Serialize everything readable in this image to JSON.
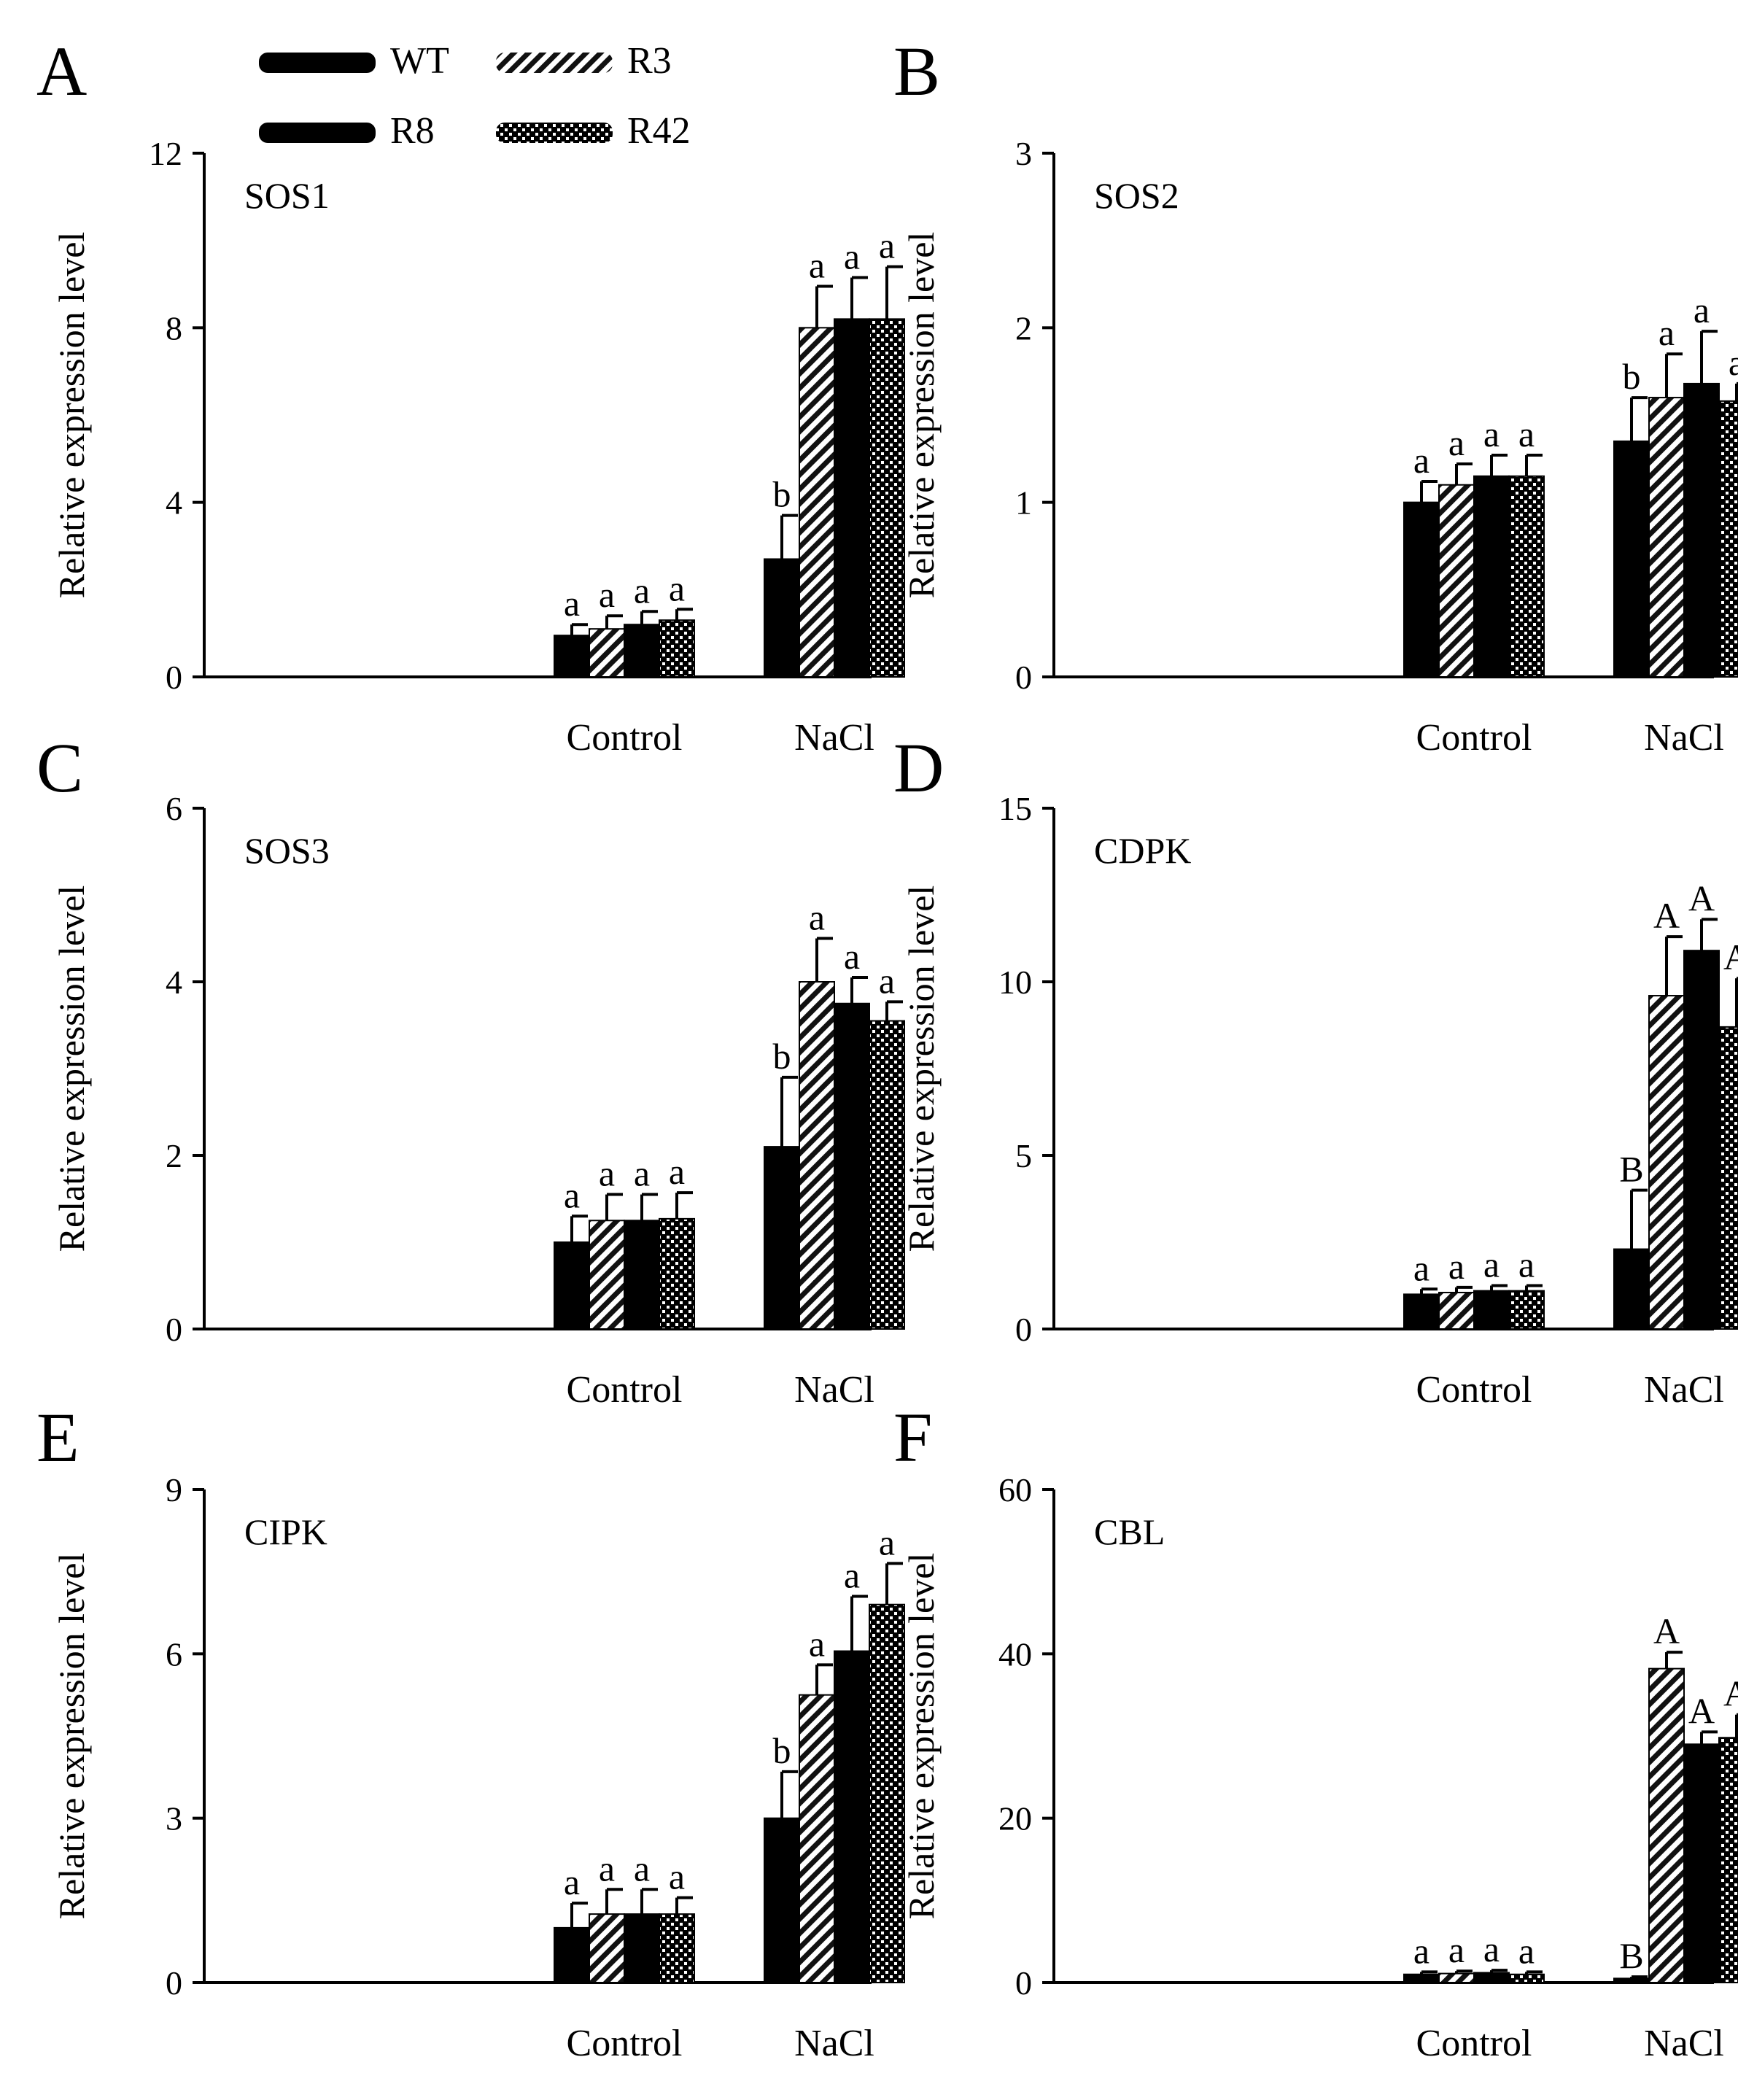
{
  "legend": {
    "placement": "top-left",
    "entries": [
      {
        "name": "WT",
        "pattern": "solid"
      },
      {
        "name": "R3",
        "pattern": "hatch"
      },
      {
        "name": "R8",
        "pattern": "solid"
      },
      {
        "name": "R42",
        "pattern": "dots"
      }
    ]
  },
  "colors": {
    "bar": "#000000",
    "background": "#ffffff"
  },
  "chart_data": [
    {
      "type": "bar",
      "panel": "A",
      "title": "SOS1",
      "ylabel": "Relative expression level",
      "xlabel": "",
      "ylim": [
        0,
        12
      ],
      "yticks": [
        0,
        4,
        8,
        12
      ],
      "categories": [
        "Control",
        "NaCl"
      ],
      "series": [
        {
          "name": "WT",
          "values": [
            0.95,
            2.7
          ],
          "errors": [
            0.25,
            1.0
          ],
          "letters": [
            "a",
            "b"
          ]
        },
        {
          "name": "R3",
          "values": [
            1.1,
            8.0
          ],
          "errors": [
            0.3,
            0.95
          ],
          "letters": [
            "a",
            "a"
          ]
        },
        {
          "name": "R8",
          "values": [
            1.2,
            8.2
          ],
          "errors": [
            0.3,
            0.95
          ],
          "letters": [
            "a",
            "a"
          ]
        },
        {
          "name": "R42",
          "values": [
            1.3,
            8.2
          ],
          "errors": [
            0.25,
            1.2
          ],
          "letters": [
            "a",
            "a"
          ]
        }
      ]
    },
    {
      "type": "bar",
      "panel": "B",
      "title": "SOS2",
      "ylabel": "Relative expression level",
      "xlabel": "",
      "ylim": [
        0,
        3
      ],
      "yticks": [
        0,
        1,
        2,
        3
      ],
      "categories": [
        "Control",
        "NaCl"
      ],
      "series": [
        {
          "name": "WT",
          "values": [
            1.0,
            1.35
          ],
          "errors": [
            0.12,
            0.25
          ],
          "letters": [
            "a",
            "b"
          ]
        },
        {
          "name": "R3",
          "values": [
            1.1,
            1.6
          ],
          "errors": [
            0.12,
            0.25
          ],
          "letters": [
            "a",
            "a"
          ]
        },
        {
          "name": "R8",
          "values": [
            1.15,
            1.68
          ],
          "errors": [
            0.12,
            0.3
          ],
          "letters": [
            "a",
            "a"
          ]
        },
        {
          "name": "R42",
          "values": [
            1.15,
            1.58
          ],
          "errors": [
            0.12,
            0.1
          ],
          "letters": [
            "a",
            "a"
          ]
        }
      ]
    },
    {
      "type": "bar",
      "panel": "C",
      "title": "SOS3",
      "ylabel": "Relative expression level",
      "xlabel": "",
      "ylim": [
        0,
        6
      ],
      "yticks": [
        0,
        2,
        4,
        6
      ],
      "categories": [
        "Control",
        "NaCl"
      ],
      "series": [
        {
          "name": "WT",
          "values": [
            1.0,
            2.1
          ],
          "errors": [
            0.3,
            0.8
          ],
          "letters": [
            "a",
            "b"
          ]
        },
        {
          "name": "R3",
          "values": [
            1.25,
            4.0
          ],
          "errors": [
            0.3,
            0.5
          ],
          "letters": [
            "a",
            "a"
          ]
        },
        {
          "name": "R8",
          "values": [
            1.25,
            3.75
          ],
          "errors": [
            0.3,
            0.3
          ],
          "letters": [
            "a",
            "a"
          ]
        },
        {
          "name": "R42",
          "values": [
            1.27,
            3.55
          ],
          "errors": [
            0.3,
            0.22
          ],
          "letters": [
            "a",
            "a"
          ]
        }
      ]
    },
    {
      "type": "bar",
      "panel": "D",
      "title": "CDPK",
      "ylabel": "Relative expression level",
      "xlabel": "",
      "ylim": [
        0,
        15
      ],
      "yticks": [
        0,
        5,
        10,
        15
      ],
      "categories": [
        "Control",
        "NaCl"
      ],
      "series": [
        {
          "name": "WT",
          "values": [
            1.0,
            2.3
          ],
          "errors": [
            0.15,
            1.7
          ],
          "letters": [
            "a",
            "B"
          ]
        },
        {
          "name": "R3",
          "values": [
            1.05,
            9.6
          ],
          "errors": [
            0.15,
            1.7
          ],
          "letters": [
            "a",
            "A"
          ]
        },
        {
          "name": "R8",
          "values": [
            1.1,
            10.9
          ],
          "errors": [
            0.15,
            0.9
          ],
          "letters": [
            "a",
            "A"
          ]
        },
        {
          "name": "R42",
          "values": [
            1.1,
            8.7
          ],
          "errors": [
            0.15,
            1.4
          ],
          "letters": [
            "a",
            "A"
          ]
        }
      ]
    },
    {
      "type": "bar",
      "panel": "E",
      "title": "CIPK",
      "ylabel": "Relative expression level",
      "xlabel": "",
      "ylim": [
        0,
        9
      ],
      "yticks": [
        0,
        3,
        6,
        9
      ],
      "categories": [
        "Control",
        "NaCl"
      ],
      "series": [
        {
          "name": "WT",
          "values": [
            1.0,
            3.0
          ],
          "errors": [
            0.45,
            0.85
          ],
          "letters": [
            "a",
            "b"
          ]
        },
        {
          "name": "R3",
          "values": [
            1.25,
            5.25
          ],
          "errors": [
            0.45,
            0.55
          ],
          "letters": [
            "a",
            "a"
          ]
        },
        {
          "name": "R8",
          "values": [
            1.25,
            6.05
          ],
          "errors": [
            0.45,
            1.0
          ],
          "letters": [
            "a",
            "a"
          ]
        },
        {
          "name": "R42",
          "values": [
            1.25,
            6.9
          ],
          "errors": [
            0.3,
            0.75
          ],
          "letters": [
            "a",
            "a"
          ]
        }
      ]
    },
    {
      "type": "bar",
      "panel": "F",
      "title": "CBL",
      "ylabel": "Relative expression level",
      "xlabel": "",
      "ylim": [
        0,
        60
      ],
      "yticks": [
        0,
        20,
        40,
        60
      ],
      "categories": [
        "Control",
        "NaCl"
      ],
      "series": [
        {
          "name": "WT",
          "values": [
            1.0,
            0.5
          ],
          "errors": [
            0.3,
            0.2
          ],
          "letters": [
            "a",
            "B"
          ]
        },
        {
          "name": "R3",
          "values": [
            1.1,
            38.2
          ],
          "errors": [
            0.3,
            2.0
          ],
          "letters": [
            "a",
            "A"
          ]
        },
        {
          "name": "R8",
          "values": [
            1.2,
            29.0
          ],
          "errors": [
            0.3,
            1.5
          ],
          "letters": [
            "a",
            "A"
          ]
        },
        {
          "name": "R42",
          "values": [
            1.0,
            29.8
          ],
          "errors": [
            0.3,
            2.8
          ],
          "letters": [
            "a",
            "A"
          ]
        }
      ]
    }
  ]
}
